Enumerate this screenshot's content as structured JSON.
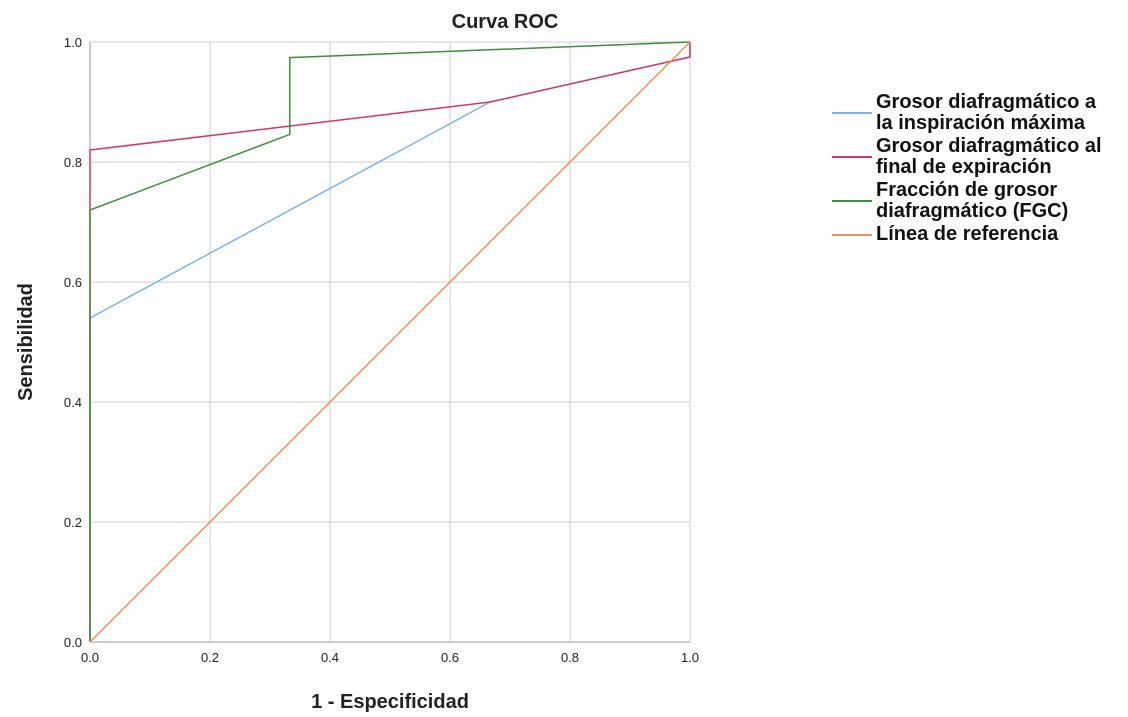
{
  "chart_data": {
    "type": "line",
    "title": "Curva ROC",
    "x_label": "1 - Especificidad",
    "y_label": "Sensibilidad",
    "xlim": [
      0,
      1
    ],
    "ylim": [
      0,
      1
    ],
    "xticks": [
      {
        "value": 0,
        "label": "0.0"
      },
      {
        "value": 0.2,
        "label": "0.2"
      },
      {
        "value": 0.4,
        "label": "0.4"
      },
      {
        "value": 0.6,
        "label": "0.6"
      },
      {
        "value": 0.8,
        "label": "0.8"
      },
      {
        "value": 1,
        "label": "1.0"
      }
    ],
    "yticks": [
      {
        "value": 0,
        "label": "0.0"
      },
      {
        "value": 0.2,
        "label": "0.2"
      },
      {
        "value": 0.4,
        "label": "0.4"
      },
      {
        "value": 0.6,
        "label": "0.6"
      },
      {
        "value": 0.8,
        "label": "0.8"
      },
      {
        "value": 1,
        "label": "1.0"
      }
    ],
    "grid": true,
    "series": [
      {
        "name": "Grosor diafragmático a la inspiración máxima",
        "color": "#7fb2ec",
        "x": [
          0,
          0,
          0.667,
          1,
          1
        ],
        "values": [
          0,
          0.54,
          0.9,
          0.975,
          1
        ]
      },
      {
        "name": "Grosor diafragmático al final de expiración",
        "color": "#d6375e",
        "x": [
          0,
          0,
          0.667,
          1,
          1
        ],
        "values": [
          0,
          0.82,
          0.9,
          0.975,
          1
        ]
      },
      {
        "name": "Fracción de grosor diafragmático (FGC)",
        "color": "#3c8f3c",
        "x": [
          0,
          0,
          0.333,
          0.333,
          1
        ],
        "values": [
          0,
          0.72,
          0.846,
          0.974,
          1
        ]
      },
      {
        "name": "Línea de referencia",
        "color": "#f0925a",
        "x": [
          0,
          1
        ],
        "values": [
          0,
          1
        ]
      }
    ]
  }
}
